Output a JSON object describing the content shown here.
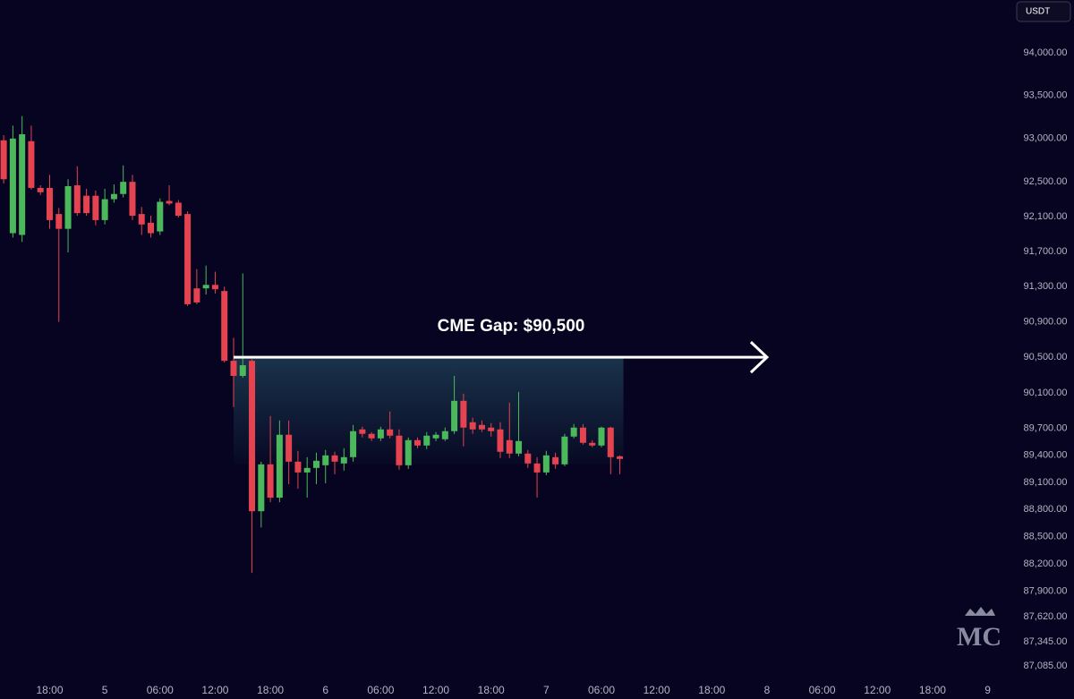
{
  "chart_data": {
    "type": "candlestick",
    "log_scale": true,
    "grid": false,
    "up_color": "#4cb85c",
    "down_color": "#e5434f",
    "currency": "USDT",
    "logo": "MC",
    "gap": {
      "label": "CME Gap: $90,500",
      "price": 90500,
      "x_start": 14,
      "x_end": 72
    },
    "xlim": [
      -11.4,
      97.6
    ],
    "ylim": [
      86930,
      94620
    ],
    "xticks": [
      {
        "value": -6,
        "label": "18:00"
      },
      {
        "value": 0,
        "label": "5"
      },
      {
        "value": 6,
        "label": "06:00"
      },
      {
        "value": 12,
        "label": "12:00"
      },
      {
        "value": 18,
        "label": "18:00"
      },
      {
        "value": 24,
        "label": "6"
      },
      {
        "value": 30,
        "label": "06:00"
      },
      {
        "value": 36,
        "label": "12:00"
      },
      {
        "value": 42,
        "label": "18:00"
      },
      {
        "value": 48,
        "label": "7"
      },
      {
        "value": 54,
        "label": "06:00"
      },
      {
        "value": 60,
        "label": "12:00"
      },
      {
        "value": 66,
        "label": "18:00"
      },
      {
        "value": 72,
        "label": "8"
      },
      {
        "value": 78,
        "label": "06:00"
      },
      {
        "value": 84,
        "label": "12:00"
      },
      {
        "value": 90,
        "label": "18:00"
      },
      {
        "value": 96,
        "label": "9"
      }
    ],
    "yticks": [
      {
        "value": 94000,
        "label": "94,000.00"
      },
      {
        "value": 93500,
        "label": "93,500.00"
      },
      {
        "value": 93000,
        "label": "93,000.00"
      },
      {
        "value": 92500,
        "label": "92,500.00"
      },
      {
        "value": 92100,
        "label": "92,100.00"
      },
      {
        "value": 91700,
        "label": "91,700.00"
      },
      {
        "value": 91300,
        "label": "91,300.00"
      },
      {
        "value": 90900,
        "label": "90,900.00"
      },
      {
        "value": 90500,
        "label": "90,500.00"
      },
      {
        "value": 90100,
        "label": "90,100.00"
      },
      {
        "value": 89700,
        "label": "89,700.00"
      },
      {
        "value": 89400,
        "label": "89,400.00"
      },
      {
        "value": 89100,
        "label": "89,100.00"
      },
      {
        "value": 88800,
        "label": "88,800.00"
      },
      {
        "value": 88500,
        "label": "88,500.00"
      },
      {
        "value": 88200,
        "label": "88,200.00"
      },
      {
        "value": 87900,
        "label": "87,900.00"
      },
      {
        "value": 87620,
        "label": "87,620.00"
      },
      {
        "value": 87345,
        "label": "87,345.00"
      },
      {
        "value": 87085,
        "label": "87,085.00"
      }
    ],
    "x": [
      -11,
      -10,
      -9,
      -8,
      -7,
      -6,
      -5,
      -4,
      -3,
      -2,
      -1,
      0,
      1,
      2,
      3,
      4,
      5,
      6,
      7,
      8,
      9,
      10,
      11,
      12,
      13,
      14,
      15,
      16,
      17,
      18,
      19,
      20,
      21,
      22,
      23,
      24,
      25,
      26,
      27,
      28,
      29,
      30,
      31,
      32,
      33,
      34,
      35,
      36,
      37,
      38,
      39,
      40,
      41,
      42,
      43,
      44,
      45,
      46,
      47,
      48,
      49,
      50,
      51,
      52,
      53,
      54,
      55,
      56
    ],
    "open": [
      92980,
      91910,
      91890,
      92970,
      92430,
      92430,
      92130,
      91960,
      92460,
      92340,
      92340,
      92060,
      92300,
      92360,
      92500,
      92130,
      92030,
      91930,
      92280,
      92260,
      92130,
      91280,
      91280,
      91320,
      91250,
      90460,
      90290,
      90460,
      88780,
      89300,
      88930,
      89630,
      89330,
      89210,
      89260,
      89290,
      89400,
      89310,
      89380,
      89690,
      89640,
      89590,
      89690,
      89620,
      89290,
      89570,
      89510,
      89590,
      89580,
      89670,
      90010,
      89770,
      89740,
      89710,
      89690,
      89570,
      89420,
      89420,
      89310,
      89210,
      89380,
      89300,
      89610,
      89710,
      89540,
      89510,
      89710,
      89390
    ],
    "high": [
      93040,
      93150,
      93260,
      93150,
      92460,
      92580,
      92200,
      92530,
      92680,
      92420,
      92400,
      92420,
      92470,
      92690,
      92580,
      92210,
      92110,
      92310,
      92460,
      92290,
      92160,
      91500,
      91540,
      91470,
      91300,
      90720,
      91450,
      90480,
      89330,
      89840,
      89790,
      89790,
      89450,
      89380,
      89430,
      89460,
      89440,
      89480,
      89740,
      89720,
      89660,
      89720,
      89890,
      89690,
      89600,
      89600,
      89660,
      89660,
      89710,
      90290,
      90090,
      89820,
      89790,
      89760,
      89770,
      89990,
      90110,
      89460,
      89380,
      89450,
      89430,
      89640,
      89750,
      89750,
      89570,
      89720,
      89720,
      89400
    ],
    "low": [
      92480,
      91860,
      91810,
      92410,
      92350,
      91960,
      90900,
      91690,
      92110,
      92110,
      92000,
      92010,
      92260,
      92320,
      92060,
      91890,
      91860,
      91890,
      92230,
      92090,
      91080,
      91100,
      91210,
      91220,
      90440,
      89940,
      90270,
      88100,
      88600,
      88880,
      88880,
      89080,
      89030,
      88930,
      89080,
      89090,
      89190,
      89230,
      89330,
      89600,
      89560,
      89560,
      89590,
      89240,
      89250,
      89480,
      89470,
      89560,
      89560,
      89640,
      89500,
      89640,
      89660,
      89610,
      89370,
      89370,
      89390,
      89260,
      88930,
      89180,
      89250,
      89280,
      89590,
      89520,
      89490,
      89490,
      89190,
      89190
    ],
    "close": [
      92530,
      93000,
      93050,
      92430,
      92380,
      92060,
      91960,
      92450,
      92140,
      92140,
      92060,
      92300,
      92360,
      92500,
      92110,
      92010,
      91910,
      92270,
      92250,
      92110,
      91100,
      91120,
      91320,
      91270,
      90460,
      90290,
      90410,
      88780,
      89300,
      88930,
      89630,
      89330,
      89210,
      89260,
      89340,
      89400,
      89330,
      89380,
      89670,
      89640,
      89590,
      89690,
      89620,
      89290,
      89570,
      89510,
      89620,
      89630,
      89670,
      90010,
      89710,
      89690,
      89690,
      89670,
      89440,
      89420,
      89560,
      89310,
      89210,
      89400,
      89300,
      89610,
      89710,
      89540,
      89510,
      89710,
      89380,
      89360
    ]
  }
}
